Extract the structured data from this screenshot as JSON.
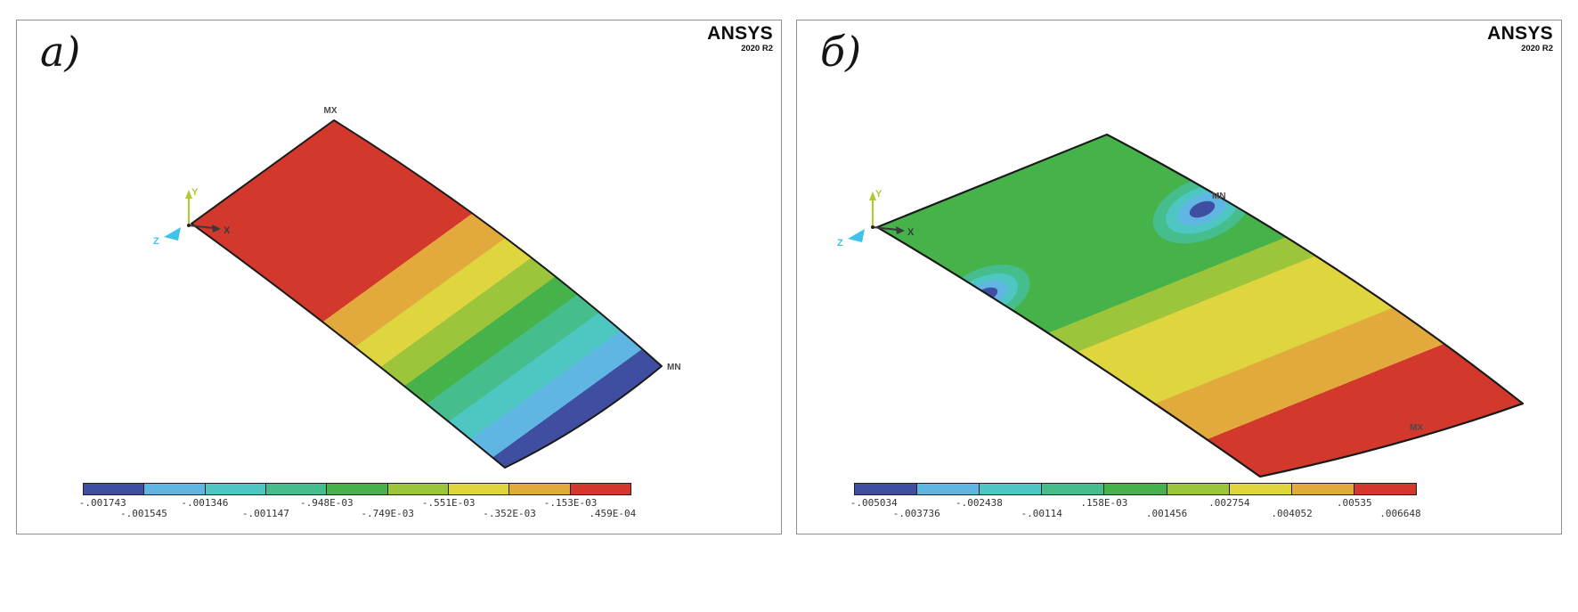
{
  "brand": {
    "name": "ANSYS",
    "version": "2020 R2"
  },
  "palette": [
    "#3f4ea0",
    "#5fb6e2",
    "#4ec7c3",
    "#45bd8d",
    "#46b24a",
    "#9cc53c",
    "#ded53f",
    "#e2a93c",
    "#d3382c"
  ],
  "axis_colors": {
    "x": "#3a3a3a",
    "y": "#b3c832",
    "z": "#3fc3e8"
  },
  "panels": [
    {
      "label": "a)",
      "axes": {
        "x": "X",
        "y": "Y",
        "z": "Z"
      },
      "markers": {
        "max": "MX",
        "min": "MN"
      },
      "legend_values": [
        "-.001743",
        "-.001545",
        "-.001346",
        "-.001147",
        "-.948E-03",
        "-.749E-03",
        "-.551E-03",
        "-.352E-03",
        "-.153E-03",
        ".459E-04"
      ]
    },
    {
      "label": "б)",
      "axes": {
        "x": "X",
        "y": "Y",
        "z": "Z"
      },
      "markers": {
        "max": "MX",
        "min": "MN"
      },
      "legend_values": [
        "-.005034",
        "-.003736",
        "-.002438",
        "-.00114",
        ".158E-03",
        ".001456",
        ".002754",
        ".004052",
        ".00535",
        ".006648"
      ]
    }
  ],
  "chart_data": [
    {
      "type": "heatmap",
      "title": "a)",
      "software": "ANSYS 2020 R2",
      "legend_position": "bottom",
      "legend_labels": [
        "-.001743",
        "-.001545",
        "-.001346",
        "-.001147",
        "-.948E-03",
        "-.749E-03",
        "-.551E-03",
        "-.352E-03",
        "-.153E-03",
        ".459E-04"
      ],
      "legend_values": [
        -0.001743,
        -0.001545,
        -0.001346,
        -0.001147,
        -0.000948,
        -0.000749,
        -0.000551,
        -0.000352,
        -0.000153,
        4.59e-05
      ],
      "max_marker": "MX",
      "min_marker": "MN",
      "description": "Contour plot of a bent plate: maximum (red, MX) band at upper-left, grading through orange, yellow and green to minimum (dark blue, MN) at the lower-right corner"
    },
    {
      "type": "heatmap",
      "title": "б)",
      "software": "ANSYS 2020 R2",
      "legend_position": "bottom",
      "legend_labels": [
        "-.005034",
        "-.003736",
        "-.002438",
        "-.00114",
        ".158E-03",
        ".001456",
        ".002754",
        ".004052",
        ".00535",
        ".006648"
      ],
      "legend_values": [
        -0.005034,
        -0.003736,
        -0.002438,
        -0.00114,
        0.000158,
        0.001456,
        0.002754,
        0.004052,
        0.00535,
        0.006648
      ],
      "max_marker": "MX",
      "min_marker": "MN",
      "description": "Contour plot of a bent plate with two local minima (dark blue dimples, MN) on the upper half and maximum (red, MX) along the lower-right edge"
    }
  ]
}
